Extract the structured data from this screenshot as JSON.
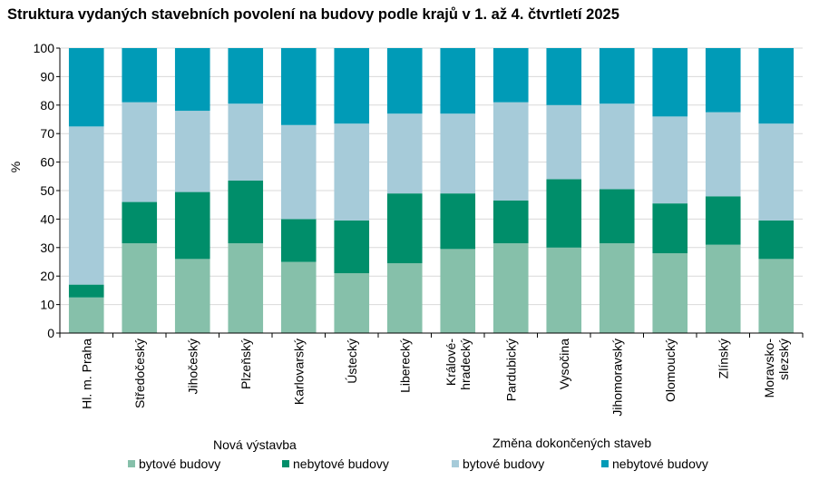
{
  "title": "Struktura vydaných stavebních povolení na budovy podle krajů v 1. až 4. čtvrtletí 2025",
  "legend": {
    "group1_title": "Nová výstavba",
    "group2_title": "Změna dokončených staveb",
    "items": [
      {
        "label": "bytové budovy",
        "color": "#86c0aa"
      },
      {
        "label": "nebytové budovy",
        "color": "#008e6a"
      },
      {
        "label": "bytové budovy",
        "color": "#a6cbd9"
      },
      {
        "label": "nebytové budovy",
        "color": "#009bb7"
      }
    ]
  },
  "chart_data": {
    "type": "bar",
    "stacked": true,
    "ylabel": "%",
    "ylim": [
      0,
      100
    ],
    "yticks": [
      0,
      10,
      20,
      30,
      40,
      50,
      60,
      70,
      80,
      90,
      100
    ],
    "grid": true,
    "categories": [
      [
        "Hl. m. Praha"
      ],
      [
        "Středočeský"
      ],
      [
        "Jihočeský"
      ],
      [
        "Plzeňský"
      ],
      [
        "Karlovarský"
      ],
      [
        "Ústecký"
      ],
      [
        "Liberecký"
      ],
      [
        "Králové-",
        "hradecký"
      ],
      [
        "Pardubický"
      ],
      [
        "Vysočina"
      ],
      [
        "Jihomoravský"
      ],
      [
        "Olomoucký"
      ],
      [
        "Zlínský"
      ],
      [
        "Moravsko-",
        "slezský"
      ]
    ],
    "series": [
      {
        "name": "Nová výstavba – bytové budovy",
        "color": "#86c0aa",
        "values": [
          12.5,
          31.5,
          26,
          31.5,
          25,
          21,
          24.5,
          29.5,
          31.5,
          30,
          31.5,
          28,
          31,
          26
        ]
      },
      {
        "name": "Nová výstavba – nebytové budovy",
        "color": "#008e6a",
        "values": [
          4.5,
          14.5,
          23.5,
          22,
          15,
          18.5,
          24.5,
          19.5,
          15,
          24,
          19,
          17.5,
          17,
          13.5
        ]
      },
      {
        "name": "Změna dokončených staveb – bytové budovy",
        "color": "#a6cbd9",
        "values": [
          55.5,
          35,
          28.5,
          27,
          33,
          34,
          28,
          28,
          34.5,
          26,
          30,
          30.5,
          29.5,
          34
        ]
      },
      {
        "name": "Změna dokončených staveb – nebytové budovy",
        "color": "#009bb7",
        "values": [
          27.5,
          19,
          22,
          19.5,
          27,
          26.5,
          23,
          23,
          19,
          20,
          19.5,
          24,
          22.5,
          26.5
        ]
      }
    ]
  }
}
